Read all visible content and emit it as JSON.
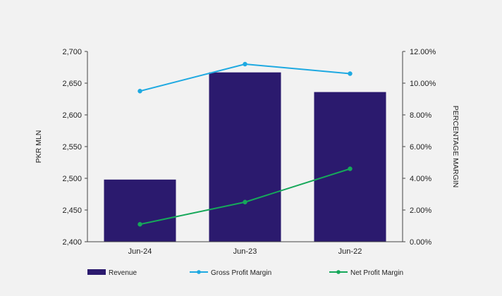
{
  "chart_data": {
    "type": "bar",
    "categories": [
      "Jun-24",
      "Jun-23",
      "Jun-22"
    ],
    "series": [
      {
        "name": "Revenue",
        "type": "bar",
        "axis": "left",
        "color": "#2b1a6e",
        "values": [
          2498,
          2667,
          2636
        ]
      },
      {
        "name": "Gross Profit Margin",
        "type": "line",
        "axis": "right",
        "color": "#1ea9e1",
        "values": [
          9.5,
          11.2,
          10.6
        ]
      },
      {
        "name": "Net Profit Margin",
        "type": "line",
        "axis": "right",
        "color": "#16a85a",
        "values": [
          1.1,
          2.5,
          4.6
        ]
      }
    ],
    "ylabel": "PKR MLN",
    "y2label": "PERCENTAGE MARGIN",
    "ylim": [
      2400,
      2700
    ],
    "y2lim": [
      0,
      12
    ],
    "yticks": [
      "2,400",
      "2,450",
      "2,500",
      "2,550",
      "2,600",
      "2,650",
      "2,700"
    ],
    "y2ticks": [
      "0.00%",
      "2.00%",
      "4.00%",
      "6.00%",
      "8.00%",
      "10.00%",
      "12.00%"
    ],
    "grid": false,
    "legend_position": "bottom"
  }
}
